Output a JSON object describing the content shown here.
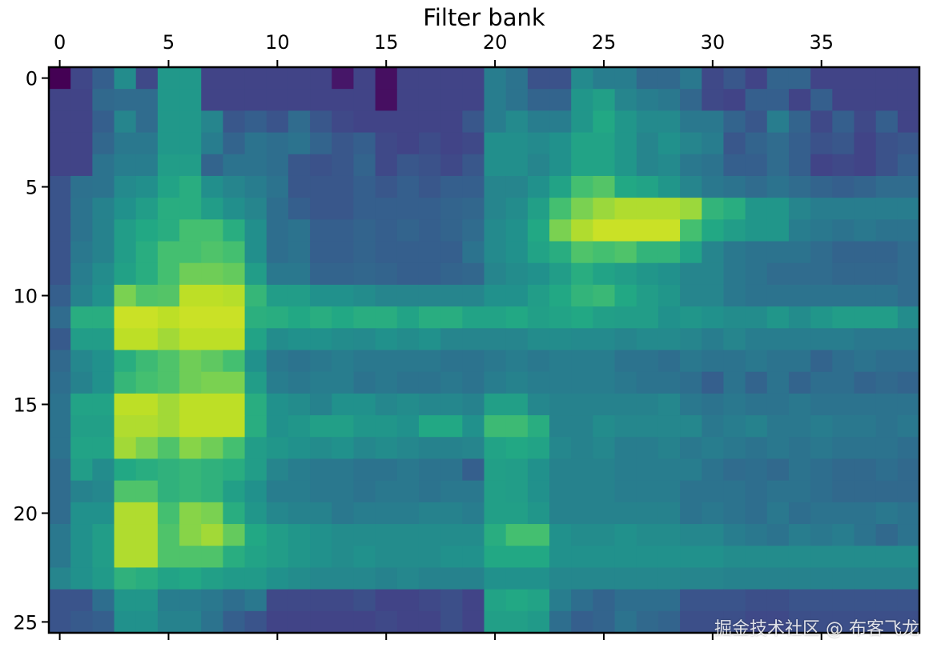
{
  "chart_data": {
    "type": "heatmap",
    "title": "",
    "xlabel": "Filter bank",
    "ylabel": "",
    "x_ticks": [
      0,
      5,
      10,
      15,
      20,
      25,
      30,
      35
    ],
    "y_ticks": [
      0,
      5,
      10,
      15,
      20,
      25
    ],
    "xlim": [
      -0.5,
      39.5
    ],
    "ylim": [
      25.5,
      -0.5
    ],
    "n_cols": 40,
    "n_rows": 26,
    "colormap": "viridis",
    "value_range": [
      0,
      1
    ],
    "grid": false,
    "x_axis_position": "top",
    "values": [
      [
        0.0,
        0.21,
        0.3,
        0.48,
        0.22,
        0.53,
        0.53,
        0.2,
        0.2,
        0.2,
        0.2,
        0.2,
        0.2,
        0.06,
        0.2,
        0.04,
        0.2,
        0.2,
        0.2,
        0.2,
        0.42,
        0.38,
        0.25,
        0.25,
        0.47,
        0.42,
        0.42,
        0.34,
        0.34,
        0.4,
        0.22,
        0.27,
        0.2,
        0.32,
        0.32,
        0.2,
        0.2,
        0.2,
        0.2,
        0.2
      ],
      [
        0.2,
        0.2,
        0.34,
        0.35,
        0.35,
        0.53,
        0.53,
        0.2,
        0.2,
        0.2,
        0.2,
        0.2,
        0.2,
        0.2,
        0.2,
        0.04,
        0.2,
        0.2,
        0.2,
        0.2,
        0.42,
        0.38,
        0.32,
        0.32,
        0.52,
        0.56,
        0.45,
        0.42,
        0.4,
        0.33,
        0.22,
        0.2,
        0.3,
        0.3,
        0.2,
        0.3,
        0.2,
        0.2,
        0.2,
        0.2
      ],
      [
        0.2,
        0.2,
        0.3,
        0.45,
        0.35,
        0.53,
        0.53,
        0.45,
        0.27,
        0.3,
        0.26,
        0.35,
        0.27,
        0.22,
        0.2,
        0.2,
        0.2,
        0.2,
        0.2,
        0.27,
        0.42,
        0.47,
        0.42,
        0.42,
        0.52,
        0.6,
        0.52,
        0.47,
        0.47,
        0.4,
        0.4,
        0.32,
        0.27,
        0.42,
        0.32,
        0.22,
        0.3,
        0.22,
        0.3,
        0.2
      ],
      [
        0.2,
        0.2,
        0.33,
        0.4,
        0.4,
        0.53,
        0.53,
        0.42,
        0.32,
        0.38,
        0.36,
        0.38,
        0.32,
        0.27,
        0.3,
        0.22,
        0.2,
        0.23,
        0.2,
        0.22,
        0.49,
        0.49,
        0.47,
        0.5,
        0.58,
        0.58,
        0.52,
        0.45,
        0.5,
        0.45,
        0.42,
        0.27,
        0.32,
        0.35,
        0.3,
        0.25,
        0.27,
        0.2,
        0.25,
        0.27
      ],
      [
        0.2,
        0.2,
        0.38,
        0.42,
        0.42,
        0.55,
        0.55,
        0.32,
        0.38,
        0.38,
        0.36,
        0.27,
        0.25,
        0.27,
        0.32,
        0.22,
        0.27,
        0.25,
        0.22,
        0.27,
        0.49,
        0.49,
        0.45,
        0.5,
        0.58,
        0.58,
        0.52,
        0.45,
        0.47,
        0.4,
        0.38,
        0.3,
        0.3,
        0.35,
        0.3,
        0.2,
        0.22,
        0.2,
        0.25,
        0.3
      ],
      [
        0.26,
        0.37,
        0.38,
        0.47,
        0.49,
        0.58,
        0.62,
        0.49,
        0.45,
        0.42,
        0.38,
        0.27,
        0.27,
        0.27,
        0.3,
        0.27,
        0.3,
        0.27,
        0.3,
        0.3,
        0.45,
        0.45,
        0.5,
        0.58,
        0.7,
        0.73,
        0.6,
        0.58,
        0.52,
        0.45,
        0.4,
        0.38,
        0.35,
        0.38,
        0.35,
        0.32,
        0.3,
        0.32,
        0.35,
        0.35
      ],
      [
        0.26,
        0.38,
        0.44,
        0.5,
        0.55,
        0.62,
        0.62,
        0.55,
        0.49,
        0.45,
        0.36,
        0.3,
        0.27,
        0.27,
        0.3,
        0.3,
        0.3,
        0.3,
        0.32,
        0.33,
        0.45,
        0.48,
        0.56,
        0.7,
        0.8,
        0.85,
        0.88,
        0.88,
        0.88,
        0.85,
        0.65,
        0.62,
        0.52,
        0.52,
        0.45,
        0.42,
        0.42,
        0.42,
        0.42,
        0.42
      ],
      [
        0.26,
        0.38,
        0.44,
        0.55,
        0.6,
        0.62,
        0.7,
        0.7,
        0.62,
        0.49,
        0.36,
        0.38,
        0.3,
        0.3,
        0.32,
        0.3,
        0.32,
        0.3,
        0.32,
        0.35,
        0.47,
        0.5,
        0.6,
        0.8,
        0.88,
        0.92,
        0.92,
        0.92,
        0.92,
        0.7,
        0.6,
        0.55,
        0.52,
        0.52,
        0.42,
        0.4,
        0.38,
        0.4,
        0.38,
        0.38
      ],
      [
        0.26,
        0.4,
        0.44,
        0.55,
        0.62,
        0.7,
        0.7,
        0.72,
        0.7,
        0.49,
        0.36,
        0.38,
        0.3,
        0.3,
        0.32,
        0.3,
        0.3,
        0.3,
        0.3,
        0.38,
        0.47,
        0.5,
        0.58,
        0.62,
        0.72,
        0.7,
        0.72,
        0.65,
        0.65,
        0.58,
        0.45,
        0.4,
        0.38,
        0.38,
        0.38,
        0.35,
        0.32,
        0.32,
        0.32,
        0.35
      ],
      [
        0.26,
        0.42,
        0.48,
        0.57,
        0.62,
        0.7,
        0.78,
        0.78,
        0.76,
        0.55,
        0.4,
        0.4,
        0.32,
        0.32,
        0.33,
        0.32,
        0.3,
        0.3,
        0.32,
        0.33,
        0.45,
        0.48,
        0.5,
        0.55,
        0.62,
        0.58,
        0.55,
        0.52,
        0.5,
        0.45,
        0.45,
        0.4,
        0.38,
        0.35,
        0.35,
        0.35,
        0.33,
        0.33,
        0.33,
        0.35
      ],
      [
        0.3,
        0.44,
        0.5,
        0.8,
        0.72,
        0.73,
        0.9,
        0.9,
        0.89,
        0.66,
        0.55,
        0.55,
        0.5,
        0.5,
        0.48,
        0.45,
        0.45,
        0.45,
        0.45,
        0.45,
        0.5,
        0.5,
        0.55,
        0.6,
        0.65,
        0.67,
        0.6,
        0.55,
        0.52,
        0.45,
        0.45,
        0.4,
        0.38,
        0.38,
        0.38,
        0.38,
        0.38,
        0.38,
        0.38,
        0.35
      ],
      [
        0.35,
        0.62,
        0.62,
        0.92,
        0.92,
        0.9,
        0.92,
        0.92,
        0.92,
        0.63,
        0.62,
        0.6,
        0.62,
        0.6,
        0.62,
        0.62,
        0.58,
        0.62,
        0.62,
        0.58,
        0.58,
        0.6,
        0.56,
        0.58,
        0.6,
        0.56,
        0.55,
        0.55,
        0.5,
        0.52,
        0.5,
        0.48,
        0.48,
        0.52,
        0.48,
        0.52,
        0.55,
        0.55,
        0.55,
        0.48
      ],
      [
        0.28,
        0.55,
        0.55,
        0.9,
        0.9,
        0.86,
        0.9,
        0.9,
        0.9,
        0.58,
        0.48,
        0.5,
        0.5,
        0.48,
        0.47,
        0.5,
        0.48,
        0.5,
        0.45,
        0.45,
        0.45,
        0.45,
        0.48,
        0.48,
        0.47,
        0.47,
        0.45,
        0.47,
        0.47,
        0.45,
        0.42,
        0.45,
        0.42,
        0.42,
        0.42,
        0.42,
        0.42,
        0.4,
        0.4,
        0.4
      ],
      [
        0.34,
        0.46,
        0.5,
        0.62,
        0.68,
        0.72,
        0.78,
        0.75,
        0.7,
        0.5,
        0.4,
        0.38,
        0.4,
        0.42,
        0.4,
        0.4,
        0.4,
        0.4,
        0.38,
        0.38,
        0.4,
        0.42,
        0.4,
        0.42,
        0.42,
        0.42,
        0.38,
        0.38,
        0.36,
        0.4,
        0.38,
        0.38,
        0.4,
        0.38,
        0.38,
        0.32,
        0.36,
        0.38,
        0.36,
        0.36
      ],
      [
        0.36,
        0.44,
        0.5,
        0.66,
        0.7,
        0.72,
        0.78,
        0.8,
        0.8,
        0.55,
        0.42,
        0.4,
        0.42,
        0.42,
        0.38,
        0.4,
        0.38,
        0.38,
        0.4,
        0.38,
        0.42,
        0.44,
        0.42,
        0.42,
        0.42,
        0.42,
        0.4,
        0.38,
        0.38,
        0.36,
        0.3,
        0.38,
        0.32,
        0.38,
        0.32,
        0.36,
        0.36,
        0.32,
        0.34,
        0.32
      ],
      [
        0.38,
        0.58,
        0.58,
        0.9,
        0.9,
        0.86,
        0.9,
        0.9,
        0.9,
        0.62,
        0.5,
        0.48,
        0.44,
        0.5,
        0.5,
        0.46,
        0.48,
        0.46,
        0.46,
        0.44,
        0.56,
        0.56,
        0.46,
        0.44,
        0.44,
        0.44,
        0.44,
        0.44,
        0.46,
        0.4,
        0.38,
        0.4,
        0.38,
        0.38,
        0.4,
        0.38,
        0.38,
        0.38,
        0.38,
        0.38
      ],
      [
        0.38,
        0.56,
        0.56,
        0.88,
        0.88,
        0.86,
        0.9,
        0.9,
        0.9,
        0.62,
        0.5,
        0.52,
        0.56,
        0.56,
        0.52,
        0.52,
        0.5,
        0.6,
        0.6,
        0.5,
        0.68,
        0.68,
        0.62,
        0.44,
        0.44,
        0.48,
        0.46,
        0.46,
        0.46,
        0.46,
        0.4,
        0.42,
        0.44,
        0.4,
        0.4,
        0.42,
        0.4,
        0.4,
        0.38,
        0.4
      ],
      [
        0.38,
        0.58,
        0.58,
        0.86,
        0.8,
        0.72,
        0.82,
        0.78,
        0.7,
        0.55,
        0.52,
        0.5,
        0.48,
        0.5,
        0.46,
        0.48,
        0.46,
        0.44,
        0.44,
        0.45,
        0.58,
        0.6,
        0.58,
        0.46,
        0.44,
        0.46,
        0.42,
        0.42,
        0.44,
        0.4,
        0.42,
        0.4,
        0.38,
        0.4,
        0.38,
        0.4,
        0.38,
        0.38,
        0.38,
        0.36
      ],
      [
        0.35,
        0.55,
        0.48,
        0.6,
        0.62,
        0.64,
        0.66,
        0.64,
        0.62,
        0.55,
        0.45,
        0.42,
        0.4,
        0.4,
        0.38,
        0.38,
        0.4,
        0.38,
        0.38,
        0.3,
        0.56,
        0.55,
        0.5,
        0.44,
        0.44,
        0.44,
        0.42,
        0.42,
        0.42,
        0.42,
        0.38,
        0.35,
        0.36,
        0.34,
        0.38,
        0.36,
        0.34,
        0.34,
        0.36,
        0.34
      ],
      [
        0.35,
        0.44,
        0.46,
        0.72,
        0.72,
        0.64,
        0.66,
        0.64,
        0.56,
        0.5,
        0.42,
        0.42,
        0.4,
        0.4,
        0.38,
        0.4,
        0.4,
        0.38,
        0.4,
        0.4,
        0.56,
        0.55,
        0.5,
        0.44,
        0.44,
        0.44,
        0.42,
        0.42,
        0.42,
        0.38,
        0.38,
        0.38,
        0.36,
        0.38,
        0.38,
        0.36,
        0.34,
        0.34,
        0.34,
        0.34
      ],
      [
        0.35,
        0.5,
        0.5,
        0.88,
        0.88,
        0.7,
        0.82,
        0.8,
        0.62,
        0.52,
        0.46,
        0.44,
        0.44,
        0.4,
        0.42,
        0.42,
        0.42,
        0.44,
        0.44,
        0.42,
        0.56,
        0.56,
        0.52,
        0.44,
        0.44,
        0.44,
        0.44,
        0.44,
        0.44,
        0.38,
        0.4,
        0.38,
        0.36,
        0.4,
        0.36,
        0.38,
        0.38,
        0.38,
        0.4,
        0.38
      ],
      [
        0.4,
        0.5,
        0.55,
        0.88,
        0.88,
        0.72,
        0.82,
        0.86,
        0.76,
        0.6,
        0.55,
        0.52,
        0.5,
        0.48,
        0.48,
        0.48,
        0.48,
        0.48,
        0.48,
        0.48,
        0.62,
        0.7,
        0.7,
        0.5,
        0.48,
        0.48,
        0.5,
        0.48,
        0.48,
        0.46,
        0.46,
        0.42,
        0.4,
        0.38,
        0.42,
        0.4,
        0.42,
        0.38,
        0.34,
        0.38
      ],
      [
        0.4,
        0.5,
        0.55,
        0.88,
        0.88,
        0.72,
        0.72,
        0.72,
        0.62,
        0.58,
        0.55,
        0.52,
        0.5,
        0.48,
        0.5,
        0.48,
        0.48,
        0.48,
        0.5,
        0.5,
        0.6,
        0.6,
        0.6,
        0.5,
        0.5,
        0.5,
        0.5,
        0.5,
        0.5,
        0.5,
        0.5,
        0.48,
        0.48,
        0.48,
        0.48,
        0.48,
        0.48,
        0.48,
        0.48,
        0.48
      ],
      [
        0.45,
        0.5,
        0.54,
        0.64,
        0.62,
        0.58,
        0.6,
        0.56,
        0.54,
        0.54,
        0.5,
        0.48,
        0.46,
        0.46,
        0.46,
        0.44,
        0.46,
        0.44,
        0.44,
        0.44,
        0.5,
        0.5,
        0.5,
        0.46,
        0.46,
        0.46,
        0.46,
        0.46,
        0.46,
        0.45,
        0.45,
        0.44,
        0.44,
        0.44,
        0.44,
        0.44,
        0.44,
        0.44,
        0.44,
        0.44
      ],
      [
        0.26,
        0.26,
        0.36,
        0.52,
        0.52,
        0.42,
        0.42,
        0.4,
        0.36,
        0.4,
        0.22,
        0.22,
        0.22,
        0.22,
        0.24,
        0.2,
        0.2,
        0.22,
        0.24,
        0.2,
        0.58,
        0.6,
        0.58,
        0.42,
        0.36,
        0.32,
        0.36,
        0.36,
        0.36,
        0.26,
        0.26,
        0.26,
        0.24,
        0.24,
        0.26,
        0.26,
        0.26,
        0.26,
        0.26,
        0.26
      ],
      [
        0.26,
        0.28,
        0.3,
        0.5,
        0.5,
        0.44,
        0.44,
        0.38,
        0.3,
        0.26,
        0.2,
        0.2,
        0.2,
        0.2,
        0.2,
        0.22,
        0.2,
        0.2,
        0.24,
        0.2,
        0.56,
        0.56,
        0.54,
        0.36,
        0.3,
        0.32,
        0.38,
        0.34,
        0.32,
        0.24,
        0.24,
        0.24,
        0.22,
        0.22,
        0.24,
        0.24,
        0.24,
        0.24,
        0.24,
        0.24
      ]
    ]
  },
  "watermark": "掘金技术社区 @ 布客飞龙"
}
